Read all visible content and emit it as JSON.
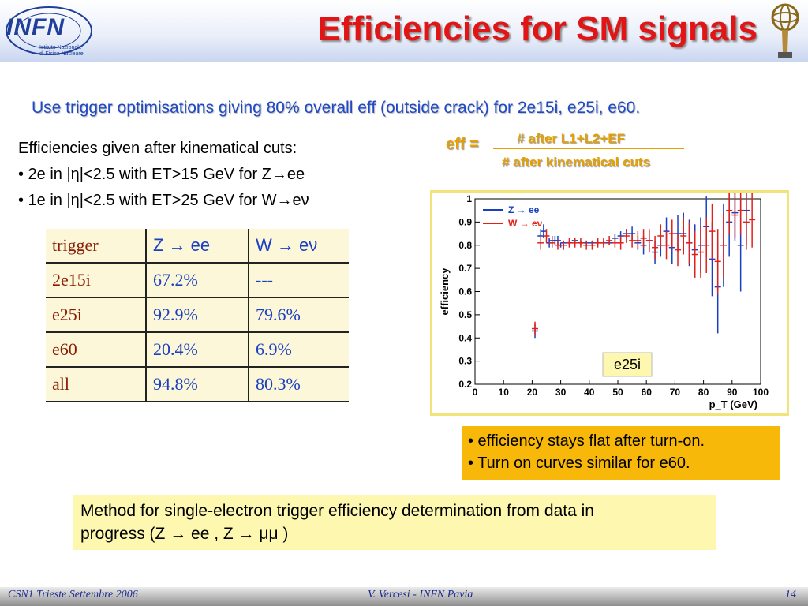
{
  "header": {
    "title": "Efficiencies for SM signals",
    "logo_text": "INFN",
    "logo_sub1": "Istituto Nazionale",
    "logo_sub2": "di Fisica Nucleare"
  },
  "subtitle": "Use trigger optimisations giving 80% overall eff (outside crack) for 2e15i, e25i, e60.",
  "cuts": {
    "heading": "Efficiencies given after kinematical cuts:",
    "line1": "• 2e in |η|<2.5 with ET>15 GeV for Z→ee",
    "line2": "• 1e in |η|<2.5 with ET>25 GeV for W→eν"
  },
  "formula": {
    "lhs": "eff =",
    "numerator": "# after L1+L2+EF",
    "denominator": "# after kinematical cuts"
  },
  "table": {
    "header": [
      "trigger",
      "Z → ee",
      "W → eν"
    ],
    "rows": [
      [
        "2e15i",
        "67.2%",
        "---"
      ],
      [
        "e25i",
        "92.9%",
        "79.6%"
      ],
      [
        "e60",
        "20.4%",
        "6.9%"
      ],
      [
        "all",
        "94.8%",
        "80.3%"
      ]
    ]
  },
  "chart_data": {
    "type": "scatter",
    "title": "",
    "xlabel": "p_T (GeV)",
    "ylabel": "efficiency",
    "xlim": [
      0,
      100
    ],
    "ylim": [
      0.2,
      1.0
    ],
    "xticks": [
      "0",
      "10",
      "20",
      "30",
      "40",
      "50",
      "60",
      "70",
      "80",
      "90",
      "100"
    ],
    "yticks": [
      "0.2",
      "0.3",
      "0.4",
      "0.5",
      "0.6",
      "0.7",
      "0.8",
      "0.9",
      "1"
    ],
    "legend": "top-left",
    "annotation": "e25i",
    "colors": {
      "Z_ee": "#1a3fc2",
      "W_enu": "#e0201a"
    },
    "series": [
      {
        "name": "Z → ee",
        "points": [
          [
            21,
            0.43,
            0.03
          ],
          [
            23,
            0.84,
            0.03
          ],
          [
            24,
            0.86,
            0.03
          ],
          [
            26,
            0.81,
            0.02
          ],
          [
            27,
            0.82,
            0.02
          ],
          [
            28,
            0.82,
            0.02
          ],
          [
            29,
            0.82,
            0.02
          ],
          [
            30,
            0.8,
            0.01
          ],
          [
            31,
            0.81,
            0.01
          ],
          [
            33,
            0.81,
            0.01
          ],
          [
            35,
            0.82,
            0.01
          ],
          [
            37,
            0.81,
            0.01
          ],
          [
            39,
            0.81,
            0.01
          ],
          [
            41,
            0.81,
            0.01
          ],
          [
            43,
            0.81,
            0.01
          ],
          [
            45,
            0.81,
            0.01
          ],
          [
            47,
            0.81,
            0.01
          ],
          [
            49,
            0.83,
            0.02
          ],
          [
            51,
            0.84,
            0.02
          ],
          [
            53,
            0.85,
            0.02
          ],
          [
            55,
            0.85,
            0.03
          ],
          [
            57,
            0.81,
            0.03
          ],
          [
            59,
            0.8,
            0.04
          ],
          [
            61,
            0.82,
            0.04
          ],
          [
            63,
            0.77,
            0.05
          ],
          [
            65,
            0.8,
            0.05
          ],
          [
            67,
            0.86,
            0.06
          ],
          [
            69,
            0.79,
            0.07
          ],
          [
            71,
            0.85,
            0.08
          ],
          [
            73,
            0.85,
            0.09
          ],
          [
            75,
            0.81,
            0.1
          ],
          [
            77,
            0.78,
            0.11
          ],
          [
            79,
            0.8,
            0.12
          ],
          [
            81,
            0.88,
            0.13
          ],
          [
            83,
            0.74,
            0.16
          ],
          [
            85,
            0.62,
            0.2
          ],
          [
            87,
            0.8,
            0.18
          ],
          [
            89,
            0.9,
            0.15
          ],
          [
            91,
            0.94,
            0.12
          ],
          [
            93,
            0.8,
            0.2
          ],
          [
            95,
            0.95,
            0.15
          ]
        ]
      },
      {
        "name": "W → eν",
        "points": [
          [
            21,
            0.44,
            0.03
          ],
          [
            23,
            0.81,
            0.03
          ],
          [
            25,
            0.84,
            0.03
          ],
          [
            27,
            0.81,
            0.02
          ],
          [
            29,
            0.8,
            0.02
          ],
          [
            31,
            0.8,
            0.02
          ],
          [
            33,
            0.81,
            0.02
          ],
          [
            35,
            0.81,
            0.02
          ],
          [
            37,
            0.81,
            0.02
          ],
          [
            39,
            0.8,
            0.02
          ],
          [
            41,
            0.8,
            0.02
          ],
          [
            43,
            0.81,
            0.02
          ],
          [
            45,
            0.81,
            0.02
          ],
          [
            47,
            0.82,
            0.02
          ],
          [
            49,
            0.81,
            0.02
          ],
          [
            51,
            0.81,
            0.03
          ],
          [
            53,
            0.84,
            0.03
          ],
          [
            55,
            0.82,
            0.03
          ],
          [
            57,
            0.82,
            0.04
          ],
          [
            59,
            0.83,
            0.04
          ],
          [
            61,
            0.82,
            0.05
          ],
          [
            63,
            0.79,
            0.05
          ],
          [
            65,
            0.84,
            0.05
          ],
          [
            67,
            0.8,
            0.06
          ],
          [
            69,
            0.85,
            0.06
          ],
          [
            71,
            0.78,
            0.07
          ],
          [
            73,
            0.84,
            0.08
          ],
          [
            75,
            0.81,
            0.09
          ],
          [
            77,
            0.76,
            0.1
          ],
          [
            79,
            0.77,
            0.11
          ],
          [
            81,
            0.8,
            0.12
          ],
          [
            83,
            0.86,
            0.12
          ],
          [
            85,
            0.73,
            0.14
          ],
          [
            87,
            0.8,
            0.14
          ],
          [
            89,
            0.95,
            0.1
          ],
          [
            91,
            0.93,
            0.1
          ],
          [
            93,
            0.95,
            0.1
          ],
          [
            95,
            0.9,
            0.12
          ],
          [
            97,
            0.91,
            0.12
          ]
        ]
      }
    ]
  },
  "bullets": {
    "line1": "• efficiency stays flat after turn-on.",
    "line2": "• Turn on curves similar for e60."
  },
  "method": {
    "line1": "Method for single-electron trigger efficiency determination from data in",
    "line2": "progress (Z → ee ,  Z → μμ )"
  },
  "footer": {
    "left": "CSN1 Trieste Settembre 2006",
    "center": "V. Vercesi - INFN Pavia",
    "page": "14"
  }
}
